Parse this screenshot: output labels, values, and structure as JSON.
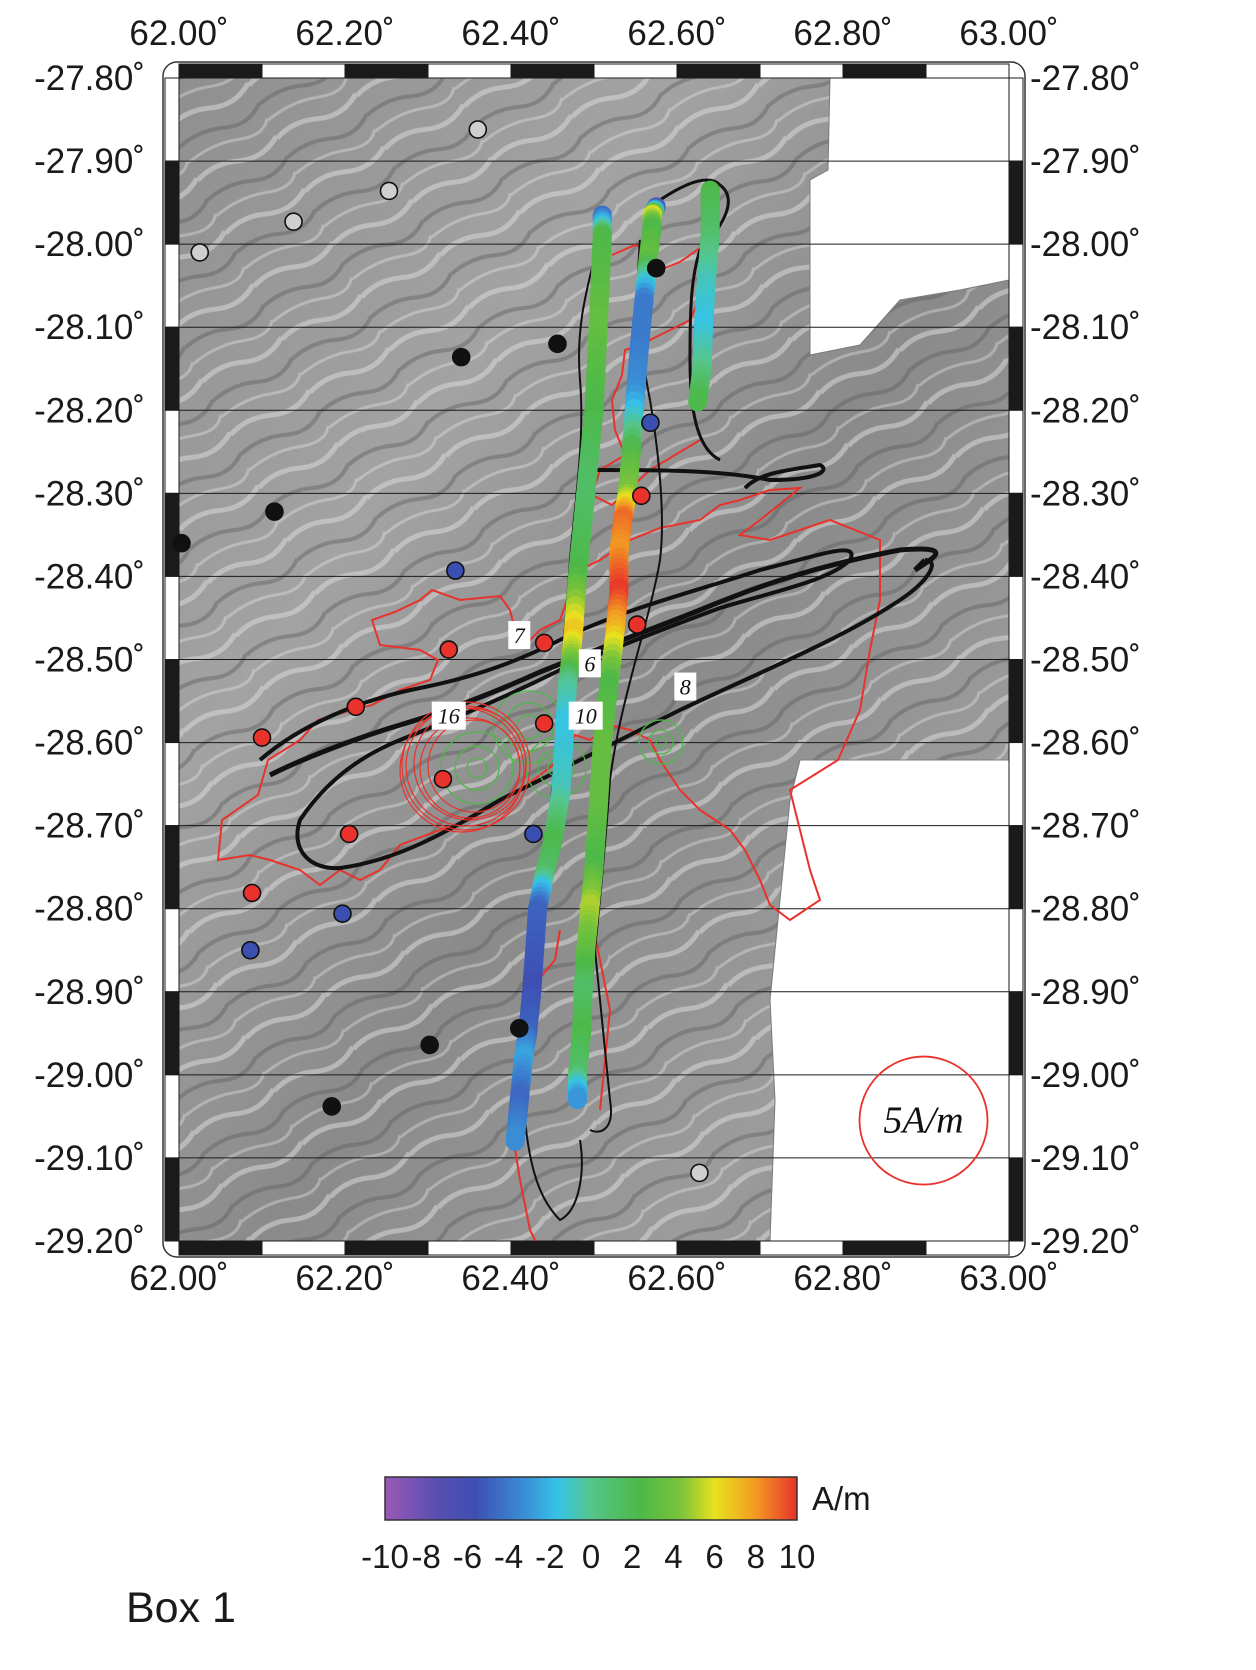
{
  "map": {
    "lon_range": [
      62.0,
      63.0
    ],
    "lat_range": [
      -29.2,
      -27.8
    ],
    "lon_ticks": [
      "62.00˚",
      "62.20˚",
      "62.40˚",
      "62.60˚",
      "62.80˚",
      "63.00˚"
    ],
    "lat_ticks": [
      "-27.80˚",
      "-27.90˚",
      "-28.00˚",
      "-28.10˚",
      "-28.20˚",
      "-28.30˚",
      "-28.40˚",
      "-28.50˚",
      "-28.60˚",
      "-28.70˚",
      "-28.80˚",
      "-28.90˚",
      "-29.00˚",
      "-29.10˚",
      "-29.20˚"
    ],
    "gridlines": true,
    "background": "shaded-relief bathymetry (grayscale)",
    "annotations": [
      {
        "text": "7",
        "lon": 62.41,
        "lat": -28.473
      },
      {
        "text": "6",
        "lon": 62.495,
        "lat": -28.507
      },
      {
        "text": "16",
        "lon": 62.325,
        "lat": -28.57
      },
      {
        "text": "10",
        "lon": 62.49,
        "lat": -28.57
      },
      {
        "text": "8",
        "lon": 62.61,
        "lat": -28.535
      }
    ],
    "scale_circle": {
      "label": "5A/m",
      "lon": 62.897,
      "lat": -29.055
    }
  },
  "stations": [
    {
      "lon": 62.36,
      "lat": -27.862,
      "color": "#cfcfcf"
    },
    {
      "lon": 62.253,
      "lat": -27.936,
      "color": "#cfcfcf"
    },
    {
      "lon": 62.138,
      "lat": -27.973,
      "color": "#cfcfcf"
    },
    {
      "lon": 62.025,
      "lat": -28.01,
      "color": "#cfcfcf"
    },
    {
      "lon": 62.627,
      "lat": -29.118,
      "color": "#cfcfcf"
    },
    {
      "lon": 62.575,
      "lat": -28.029,
      "color": "#111111"
    },
    {
      "lon": 62.456,
      "lat": -28.12,
      "color": "#111111"
    },
    {
      "lon": 62.34,
      "lat": -28.136,
      "color": "#111111"
    },
    {
      "lon": 62.115,
      "lat": -28.322,
      "color": "#111111"
    },
    {
      "lon": 62.003,
      "lat": -28.36,
      "color": "#111111"
    },
    {
      "lon": 62.41,
      "lat": -28.944,
      "color": "#111111"
    },
    {
      "lon": 62.302,
      "lat": -28.964,
      "color": "#111111"
    },
    {
      "lon": 62.184,
      "lat": -29.038,
      "color": "#111111"
    },
    {
      "lon": 62.568,
      "lat": -28.215,
      "color": "#3a4fb0"
    },
    {
      "lon": 62.333,
      "lat": -28.393,
      "color": "#3a4fb0"
    },
    {
      "lon": 62.427,
      "lat": -28.71,
      "color": "#3a4fb0"
    },
    {
      "lon": 62.197,
      "lat": -28.806,
      "color": "#3a4fb0"
    },
    {
      "lon": 62.086,
      "lat": -28.85,
      "color": "#3a4fb0"
    },
    {
      "lon": 62.557,
      "lat": -28.303,
      "color": "#e8322b"
    },
    {
      "lon": 62.552,
      "lat": -28.458,
      "color": "#e8322b"
    },
    {
      "lon": 62.44,
      "lat": -28.48,
      "color": "#e8322b"
    },
    {
      "lon": 62.325,
      "lat": -28.488,
      "color": "#e8322b"
    },
    {
      "lon": 62.213,
      "lat": -28.557,
      "color": "#e8322b"
    },
    {
      "lon": 62.1,
      "lat": -28.594,
      "color": "#e8322b"
    },
    {
      "lon": 62.44,
      "lat": -28.577,
      "color": "#e8322b"
    },
    {
      "lon": 62.318,
      "lat": -28.644,
      "color": "#e8322b"
    },
    {
      "lon": 62.205,
      "lat": -28.71,
      "color": "#e8322b"
    },
    {
      "lon": 62.088,
      "lat": -28.781,
      "color": "#e8322b"
    }
  ],
  "tracks": [
    {
      "name": "west",
      "points": [
        [
          62.51,
          -27.965,
          -6
        ],
        [
          62.51,
          -27.99,
          2
        ],
        [
          62.505,
          -28.1,
          3
        ],
        [
          62.5,
          -28.2,
          2
        ],
        [
          62.49,
          -28.3,
          1
        ],
        [
          62.48,
          -28.4,
          2
        ],
        [
          62.475,
          -28.47,
          7
        ],
        [
          62.472,
          -28.5,
          4
        ],
        [
          62.468,
          -28.53,
          0
        ],
        [
          62.465,
          -28.58,
          -2
        ],
        [
          62.46,
          -28.66,
          -1
        ],
        [
          62.45,
          -28.72,
          2
        ],
        [
          62.44,
          -28.76,
          1
        ],
        [
          62.432,
          -28.8,
          -6
        ],
        [
          62.425,
          -28.9,
          -7
        ],
        [
          62.42,
          -28.95,
          -6
        ],
        [
          62.415,
          -28.98,
          -3
        ],
        [
          62.41,
          -29.03,
          -6
        ],
        [
          62.405,
          -29.08,
          -4
        ]
      ]
    },
    {
      "name": "middle",
      "points": [
        [
          62.575,
          -27.955,
          -9
        ],
        [
          62.57,
          -27.965,
          6
        ],
        [
          62.57,
          -27.98,
          2
        ],
        [
          62.565,
          -28.02,
          3
        ],
        [
          62.56,
          -28.07,
          -5
        ],
        [
          62.555,
          -28.12,
          -5
        ],
        [
          62.55,
          -28.18,
          -4
        ],
        [
          62.545,
          -28.25,
          2
        ],
        [
          62.54,
          -28.3,
          4
        ],
        [
          62.535,
          -28.33,
          9
        ],
        [
          62.53,
          -28.37,
          8
        ],
        [
          62.53,
          -28.42,
          10
        ],
        [
          62.525,
          -28.47,
          7
        ],
        [
          62.518,
          -28.53,
          2
        ],
        [
          62.51,
          -28.6,
          3
        ],
        [
          62.505,
          -28.68,
          3
        ],
        [
          62.5,
          -28.75,
          2
        ],
        [
          62.495,
          -28.8,
          5
        ],
        [
          62.49,
          -28.85,
          3
        ],
        [
          62.487,
          -28.9,
          1
        ],
        [
          62.485,
          -28.95,
          2
        ],
        [
          62.48,
          -29.0,
          1
        ],
        [
          62.48,
          -29.03,
          -4
        ]
      ]
    },
    {
      "name": "east",
      "points": [
        [
          62.64,
          -27.935,
          2
        ],
        [
          62.64,
          -27.99,
          1
        ],
        [
          62.635,
          -28.05,
          -1
        ],
        [
          62.632,
          -28.1,
          -2
        ],
        [
          62.63,
          -28.15,
          0
        ],
        [
          62.625,
          -28.19,
          2
        ]
      ]
    }
  ],
  "colorbar": {
    "unit": "A/m",
    "tick_labels": [
      "-10",
      "-8",
      "-6",
      "-4",
      "-2",
      "0",
      "2",
      "4",
      "6",
      "8",
      "10"
    ],
    "range": [
      -10,
      10
    ],
    "colors": [
      "#9b59b6",
      "#3e4fb3",
      "#3a8fd6",
      "#35c3e8",
      "#55c58a",
      "#4db848",
      "#7cc43a",
      "#e8e21e",
      "#f29a22",
      "#e8322b"
    ]
  },
  "box_label": "Box 1"
}
